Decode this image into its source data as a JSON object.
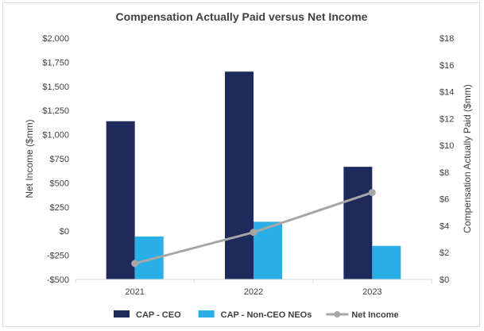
{
  "chart_data": {
    "type": "bar",
    "title": "Compensation Actually Paid versus Net Income",
    "categories": [
      "2021",
      "2022",
      "2023"
    ],
    "left_axis": {
      "label": "Net Income ($mm)",
      "range": [
        -500,
        2000
      ],
      "ticks": [
        -500,
        -250,
        0,
        250,
        500,
        750,
        1000,
        1250,
        1500,
        1750,
        2000
      ],
      "tick_labels": [
        "-$500",
        "-$250",
        "$0",
        "$250",
        "$500",
        "$750",
        "$1,000",
        "$1,250",
        "$1,500",
        "$1,750",
        "$2,000"
      ]
    },
    "right_axis": {
      "label": "Compensation Actually Paid ($mm)",
      "range": [
        0,
        18
      ],
      "ticks": [
        0,
        2,
        4,
        6,
        8,
        10,
        12,
        14,
        16,
        18
      ],
      "tick_labels": [
        "$0",
        "$2",
        "$4",
        "$6",
        "$8",
        "$10",
        "$12",
        "$14",
        "$16",
        "$18"
      ]
    },
    "series": [
      {
        "name": "CAP - CEO",
        "type": "bar",
        "axis": "right",
        "color": "#1f2a5c",
        "values": [
          11.8,
          15.5,
          8.4
        ]
      },
      {
        "name": "CAP - Non-CEO NEOs",
        "type": "bar",
        "axis": "right",
        "color": "#29aee6",
        "values": [
          3.2,
          4.3,
          2.5
        ]
      },
      {
        "name": "Net Income",
        "type": "line",
        "axis": "left",
        "color": "#a6a6a6",
        "values": [
          -335,
          -12,
          400
        ]
      }
    ],
    "grid": false,
    "legend_position": "bottom"
  }
}
